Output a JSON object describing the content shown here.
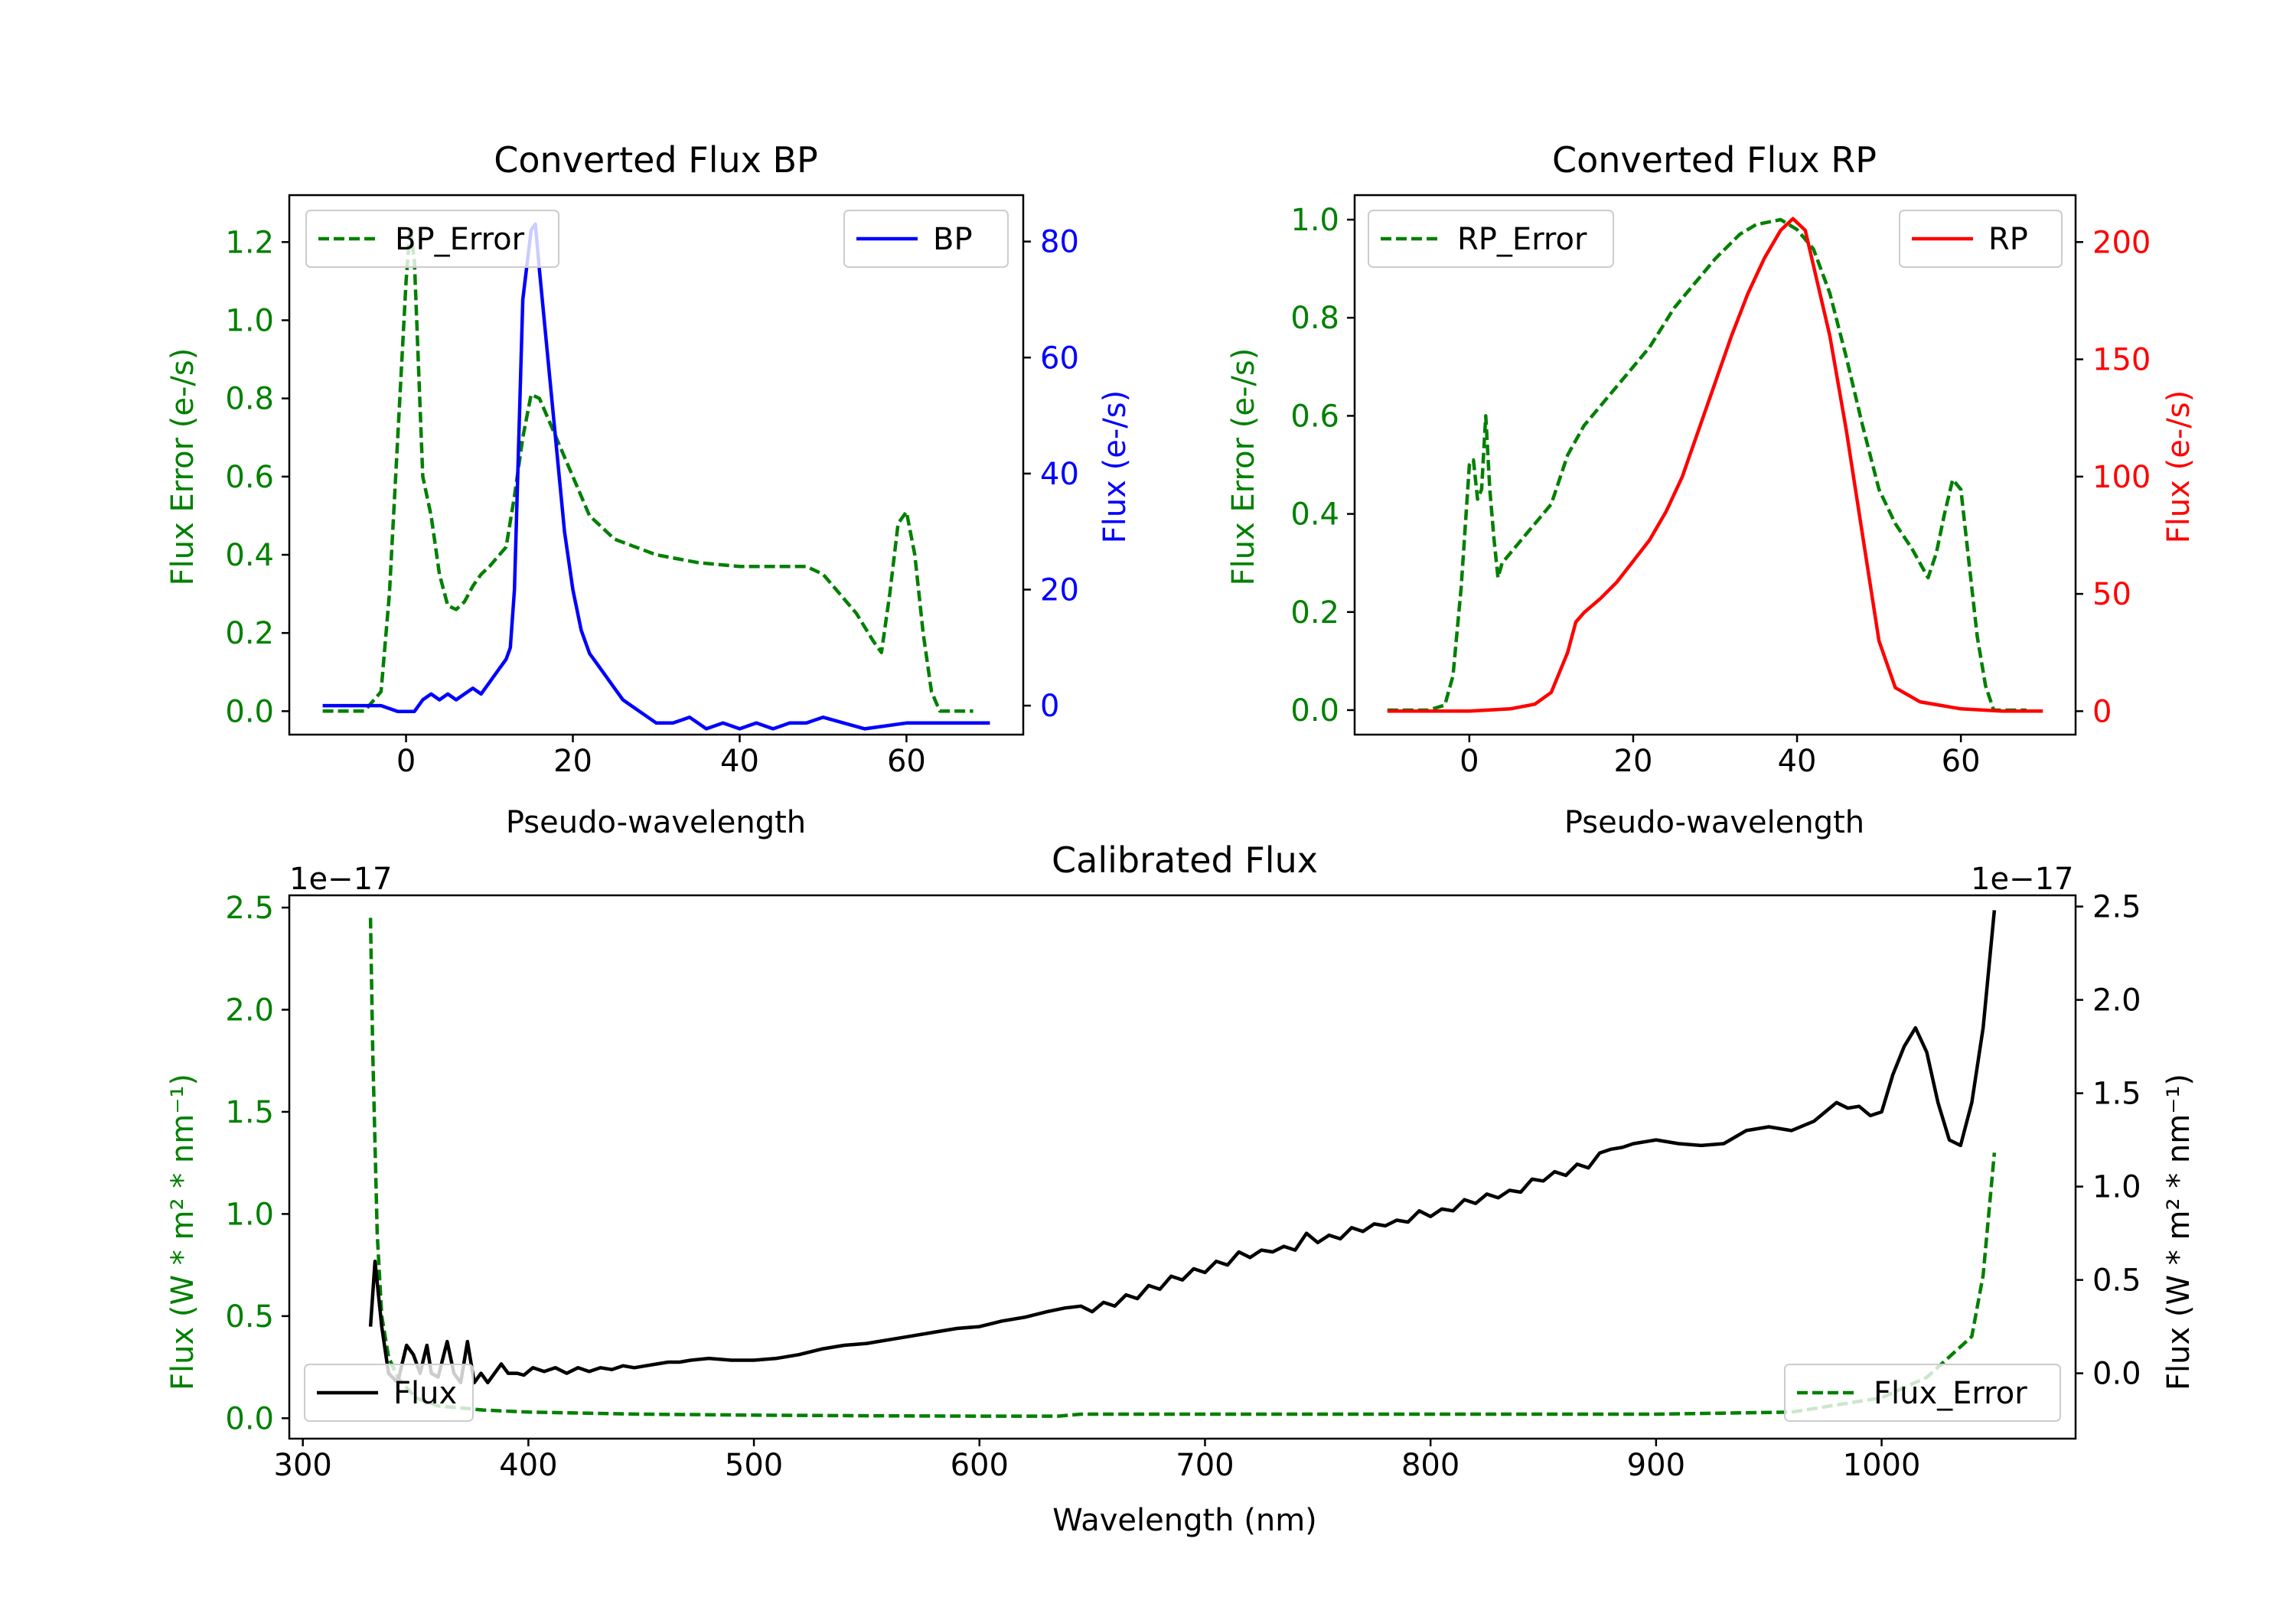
{
  "colors": {
    "green": "#008000",
    "blue": "#0000ff",
    "red": "#ff0000",
    "black": "#000000"
  },
  "chart_data": [
    {
      "id": "bp",
      "type": "line",
      "title": "Converted Flux BP",
      "xlabel": "Pseudo-wavelength",
      "ylabel_left": "Flux Error (e-/s)",
      "ylabel_right": "Flux (e-/s)",
      "xlim": [
        -14,
        74
      ],
      "ylim_left": [
        -0.06,
        1.32
      ],
      "ylim_right": [
        -5,
        88
      ],
      "xticks": [
        0,
        20,
        40,
        60
      ],
      "yticks_left": [
        0.0,
        0.2,
        0.4,
        0.6,
        0.8,
        1.0,
        1.2
      ],
      "yticks_right": [
        0,
        20,
        40,
        60,
        80
      ],
      "legend_left": {
        "label": "BP_Error",
        "position": "upper left"
      },
      "legend_right": {
        "label": "BP",
        "position": "upper right"
      },
      "series": [
        {
          "name": "BP_Error",
          "axis": "left",
          "style": "dashed",
          "color": "green",
          "x": [
            -10,
            -5,
            -3,
            -2,
            -1,
            0,
            0.5,
            1,
            2,
            3,
            4,
            5,
            6,
            7,
            8,
            9,
            10,
            12,
            13,
            14,
            15,
            16,
            18,
            20,
            22,
            25,
            30,
            35,
            40,
            45,
            48,
            50,
            52,
            54,
            56,
            57,
            58,
            59,
            60,
            61,
            62,
            63,
            64,
            65,
            68
          ],
          "y": [
            0,
            0,
            0.05,
            0.3,
            0.7,
            1.1,
            1.24,
            1.15,
            0.6,
            0.5,
            0.35,
            0.27,
            0.26,
            0.28,
            0.32,
            0.35,
            0.37,
            0.42,
            0.55,
            0.7,
            0.81,
            0.8,
            0.7,
            0.6,
            0.5,
            0.44,
            0.4,
            0.38,
            0.37,
            0.37,
            0.37,
            0.35,
            0.3,
            0.25,
            0.18,
            0.15,
            0.3,
            0.48,
            0.51,
            0.4,
            0.2,
            0.05,
            0,
            0,
            0
          ]
        },
        {
          "name": "BP",
          "axis": "right",
          "style": "solid",
          "color": "blue",
          "x": [
            -10,
            -5,
            -3,
            -1,
            0,
            1,
            2,
            3,
            4,
            5,
            6,
            7,
            8,
            9,
            10,
            11,
            12,
            12.5,
            13,
            14,
            15,
            15.5,
            16,
            17,
            18,
            19,
            20,
            21,
            22,
            23,
            24,
            25,
            26,
            27,
            28,
            30,
            32,
            34,
            36,
            38,
            40,
            42,
            44,
            46,
            48,
            50,
            55,
            60,
            65,
            70
          ],
          "y": [
            0,
            0,
            0,
            -1,
            -1,
            -1,
            1,
            2,
            1,
            2,
            1,
            2,
            3,
            2,
            4,
            6,
            8,
            10,
            20,
            70,
            82,
            83,
            75,
            60,
            45,
            30,
            20,
            13,
            9,
            7,
            5,
            3,
            1,
            0,
            -1,
            -3,
            -3,
            -2,
            -4,
            -3,
            -4,
            -3,
            -4,
            -3,
            -3,
            -2,
            -4,
            -3,
            -3,
            -3
          ]
        }
      ]
    },
    {
      "id": "rp",
      "type": "line",
      "title": "Converted Flux RP",
      "xlabel": "Pseudo-wavelength",
      "ylabel_left": "Flux Error (e-/s)",
      "ylabel_right": "Flux (e-/s)",
      "xlim": [
        -14,
        74
      ],
      "ylim_left": [
        -0.05,
        1.05
      ],
      "ylim_right": [
        -10,
        220
      ],
      "xticks": [
        0,
        20,
        40,
        60
      ],
      "yticks_left": [
        0.0,
        0.2,
        0.4,
        0.6,
        0.8,
        1.0
      ],
      "yticks_right": [
        0,
        50,
        100,
        150,
        200
      ],
      "legend_left": {
        "label": "RP_Error",
        "position": "upper left"
      },
      "legend_right": {
        "label": "RP",
        "position": "upper right"
      },
      "series": [
        {
          "name": "RP_Error",
          "axis": "left",
          "style": "dashed",
          "color": "green",
          "x": [
            -10,
            -5,
            -3,
            -2,
            -1,
            0,
            0.5,
            1,
            1.5,
            2,
            2.5,
            3,
            3.5,
            4,
            5,
            6,
            8,
            10,
            12,
            14,
            16,
            18,
            20,
            22,
            25,
            28,
            30,
            33,
            35,
            38,
            40,
            42,
            44,
            46,
            48,
            50,
            52,
            54,
            56,
            57,
            58,
            59,
            60,
            61,
            62,
            63,
            64,
            65,
            68
          ],
          "y": [
            0,
            0,
            0.01,
            0.07,
            0.25,
            0.5,
            0.51,
            0.43,
            0.45,
            0.6,
            0.45,
            0.35,
            0.27,
            0.3,
            0.32,
            0.34,
            0.38,
            0.42,
            0.52,
            0.58,
            0.62,
            0.66,
            0.7,
            0.74,
            0.82,
            0.88,
            0.92,
            0.97,
            0.99,
            1.0,
            0.98,
            0.94,
            0.85,
            0.72,
            0.58,
            0.45,
            0.38,
            0.33,
            0.27,
            0.32,
            0.4,
            0.47,
            0.45,
            0.3,
            0.15,
            0.05,
            0,
            0,
            0
          ]
        },
        {
          "name": "RP",
          "axis": "right",
          "style": "solid",
          "color": "red",
          "x": [
            -10,
            0,
            5,
            8,
            10,
            12,
            13,
            14,
            16,
            18,
            20,
            22,
            24,
            26,
            28,
            30,
            32,
            34,
            36,
            38,
            39.5,
            41,
            42,
            44,
            46,
            48,
            50,
            52,
            55,
            60,
            65,
            70
          ],
          "y": [
            0,
            0,
            1,
            3,
            8,
            25,
            38,
            42,
            48,
            55,
            64,
            73,
            85,
            100,
            120,
            140,
            160,
            178,
            193,
            205,
            210,
            205,
            190,
            160,
            120,
            75,
            30,
            10,
            4,
            1,
            0,
            0
          ]
        }
      ]
    },
    {
      "id": "cal",
      "type": "line",
      "title": "Calibrated Flux",
      "xlabel": "Wavelength (nm)",
      "ylabel_left": "Flux (W * m² * nm⁻¹)",
      "ylabel_right": "Flux (W * m² * nm⁻¹)",
      "left_offset_label": "1e−17",
      "right_offset_label": "1e−17",
      "xlim": [
        294,
        1086
      ],
      "ylim_left": [
        -0.1,
        2.56
      ],
      "ylim_right": [
        -0.35,
        2.56
      ],
      "xticks": [
        300,
        400,
        500,
        600,
        700,
        800,
        900,
        1000
      ],
      "yticks_left": [
        0.0,
        0.5,
        1.0,
        1.5,
        2.0,
        2.5
      ],
      "yticks_right": [
        0.0,
        0.5,
        1.0,
        1.5,
        2.0,
        2.5
      ],
      "legend_left": {
        "label": "Flux",
        "position": "lower left"
      },
      "legend_right": {
        "label": "Flux_Error",
        "position": "lower right"
      },
      "series": [
        {
          "name": "Flux_Error",
          "axis": "left",
          "style": "dashed",
          "color": "green",
          "x": [
            330,
            331,
            333,
            335,
            338,
            342,
            350,
            360,
            380,
            400,
            450,
            500,
            550,
            600,
            635,
            645,
            700,
            800,
            900,
            960,
            1000,
            1020,
            1030,
            1040,
            1045,
            1050
          ],
          "y": [
            2.45,
            1.8,
            0.9,
            0.5,
            0.3,
            0.2,
            0.1,
            0.06,
            0.04,
            0.03,
            0.02,
            0.015,
            0.012,
            0.01,
            0.01,
            0.02,
            0.02,
            0.02,
            0.02,
            0.03,
            0.1,
            0.2,
            0.3,
            0.4,
            0.7,
            1.3
          ]
        },
        {
          "name": "Flux",
          "axis": "right",
          "style": "solid",
          "color": "black",
          "x": [
            330,
            332,
            335,
            338,
            342,
            346,
            349,
            352,
            355,
            357,
            360,
            364,
            367,
            370,
            373,
            376,
            379,
            382,
            385,
            388,
            391,
            395,
            398,
            402,
            407,
            412,
            417,
            422,
            427,
            432,
            437,
            442,
            447,
            452,
            457,
            462,
            467,
            472,
            480,
            490,
            500,
            510,
            520,
            530,
            540,
            550,
            560,
            570,
            580,
            590,
            600,
            610,
            620,
            630,
            638,
            645,
            650,
            655,
            660,
            665,
            670,
            675,
            680,
            685,
            690,
            695,
            700,
            705,
            710,
            715,
            720,
            725,
            730,
            735,
            740,
            745,
            750,
            755,
            760,
            765,
            770,
            775,
            780,
            785,
            790,
            795,
            800,
            805,
            810,
            815,
            820,
            825,
            830,
            835,
            840,
            845,
            850,
            855,
            860,
            865,
            870,
            875,
            880,
            885,
            890,
            900,
            910,
            920,
            930,
            940,
            950,
            960,
            970,
            975,
            980,
            985,
            990,
            995,
            1000,
            1005,
            1010,
            1015,
            1020,
            1025,
            1030,
            1035,
            1040,
            1045,
            1050
          ],
          "y": [
            0.25,
            0.6,
            0.25,
            0.0,
            -0.05,
            0.15,
            0.1,
            0.0,
            0.15,
            0.0,
            -0.02,
            0.17,
            0.0,
            -0.05,
            0.17,
            -0.05,
            0.0,
            -0.05,
            0.0,
            0.05,
            0.0,
            0.0,
            -0.01,
            0.03,
            0.01,
            0.03,
            0.0,
            0.03,
            0.01,
            0.03,
            0.02,
            0.04,
            0.03,
            0.04,
            0.05,
            0.06,
            0.06,
            0.07,
            0.08,
            0.07,
            0.07,
            0.08,
            0.1,
            0.13,
            0.15,
            0.16,
            0.18,
            0.2,
            0.22,
            0.24,
            0.25,
            0.28,
            0.3,
            0.33,
            0.35,
            0.36,
            0.33,
            0.38,
            0.36,
            0.42,
            0.4,
            0.47,
            0.45,
            0.52,
            0.5,
            0.56,
            0.54,
            0.6,
            0.58,
            0.65,
            0.62,
            0.66,
            0.65,
            0.68,
            0.66,
            0.75,
            0.7,
            0.74,
            0.72,
            0.78,
            0.76,
            0.8,
            0.79,
            0.82,
            0.81,
            0.87,
            0.84,
            0.88,
            0.87,
            0.93,
            0.91,
            0.96,
            0.94,
            0.98,
            0.97,
            1.04,
            1.03,
            1.08,
            1.06,
            1.12,
            1.1,
            1.18,
            1.2,
            1.21,
            1.23,
            1.25,
            1.23,
            1.22,
            1.23,
            1.3,
            1.32,
            1.3,
            1.35,
            1.4,
            1.45,
            1.42,
            1.43,
            1.38,
            1.4,
            1.6,
            1.75,
            1.85,
            1.72,
            1.45,
            1.25,
            1.22,
            1.45,
            1.85,
            2.48
          ]
        }
      ]
    }
  ]
}
